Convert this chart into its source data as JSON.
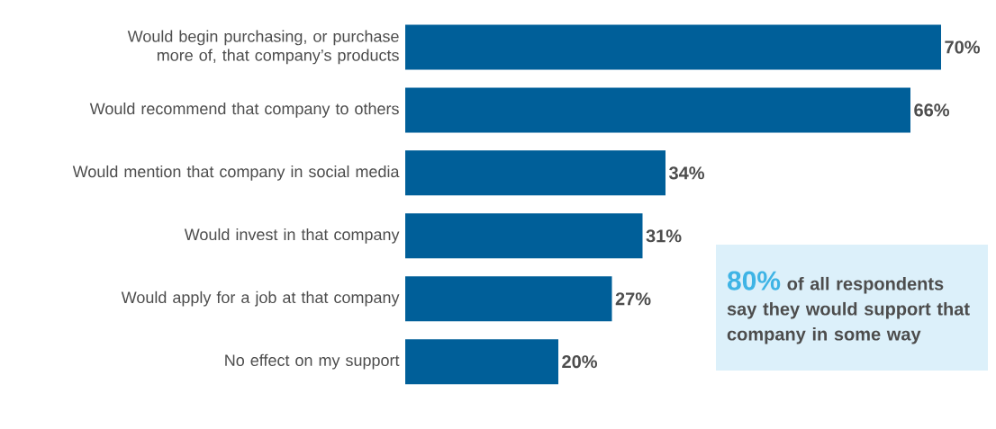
{
  "chart_data": {
    "type": "bar",
    "orientation": "horizontal",
    "categories": [
      "Would begin purchasing, or purchase more of, that company’s products",
      "Would recommend that company to others",
      "Would mention that company in social media",
      "Would invest in that company",
      "Would apply for a job at that company",
      "No effect on my support"
    ],
    "values": [
      70,
      66,
      34,
      31,
      27,
      20
    ],
    "color": "#005f99",
    "xlim": [
      0,
      76
    ],
    "value_labels": [
      "70%",
      "66%",
      "34%",
      "31%",
      "27%",
      "20%"
    ],
    "tick_labels": "y",
    "annotations": [
      "80%",
      "of all respondents say they would support that company in some way"
    ]
  }
}
